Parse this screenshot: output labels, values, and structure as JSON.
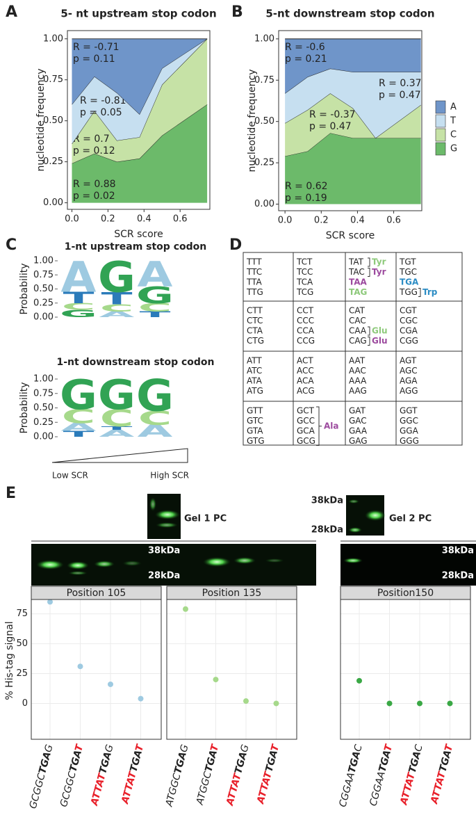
{
  "panel_labels": [
    "A",
    "B",
    "C",
    "D",
    "E"
  ],
  "chart_data": [
    {
      "type": "area",
      "title": "5- nt upstream stop codon",
      "xlabel": "SCR score",
      "ylabel": "nucleotide frequency",
      "x": [
        0,
        0.125,
        0.25,
        0.375,
        0.5,
        0.75
      ],
      "xlim": [
        -0.025,
        0.765
      ],
      "xticks": [
        {
          "value": 0,
          "label": "0.0"
        },
        0.2,
        0.4,
        0.6
      ],
      "ylim": [
        -0.04,
        1.05
      ],
      "yticks": [
        {
          "value": 0,
          "label": "0.00"
        },
        0.25,
        {
          "value": 0.5,
          "label": "0.50"
        },
        0.75,
        {
          "value": 1,
          "label": "1.00"
        }
      ],
      "stacked": true,
      "series": [
        {
          "name": "G",
          "color": "#6cba6a",
          "values": [
            0.24,
            0.3,
            0.25,
            0.27,
            0.41,
            0.6
          ],
          "annotation": [
            "R = 0.88",
            "p = 0.02"
          ]
        },
        {
          "name": "C",
          "color": "#c6e2a6",
          "values": [
            0.12,
            0.26,
            0.13,
            0.13,
            0.31,
            0.4
          ],
          "annotation": [
            "R = 0.7",
            "p = 0.12"
          ]
        },
        {
          "name": "T",
          "color": "#c6dff0",
          "values": [
            0.24,
            0.21,
            0.29,
            0.14,
            0.1,
            0
          ],
          "annotation": [
            "R = -0.81",
            "p = 0.05"
          ]
        },
        {
          "name": "A",
          "color": "#6f95c9",
          "values": [
            0.4,
            0.23,
            0.33,
            0.46,
            0.18,
            0
          ],
          "annotation": [
            "R = -0.71",
            "p = 0.11"
          ]
        }
      ]
    },
    {
      "type": "area",
      "title": "5-nt downstream stop codon",
      "xlabel": "SCR score",
      "ylabel": "nucleotide frequency",
      "x": [
        0,
        0.125,
        0.25,
        0.375,
        0.5,
        0.75
      ],
      "xlim": [
        -0.035,
        0.755
      ],
      "xticks": [
        {
          "value": 0,
          "label": "0.0"
        },
        0.2,
        0.4,
        0.6
      ],
      "ylim": [
        -0.04,
        1.05
      ],
      "yticks": [
        {
          "value": 0,
          "label": "0.00"
        },
        0.25,
        {
          "value": 0.5,
          "label": "0.50"
        },
        0.75,
        {
          "value": 1,
          "label": "1.00"
        }
      ],
      "stacked": true,
      "legend": "right",
      "series": [
        {
          "name": "G",
          "color": "#6cba6a",
          "values": [
            0.29,
            0.32,
            0.43,
            0.4,
            0.4,
            0.4
          ],
          "annotation": [
            "R = 0.62",
            "p = 0.19"
          ]
        },
        {
          "name": "C",
          "color": "#c6e2a6",
          "values": [
            0.2,
            0.25,
            0.24,
            0.18,
            0,
            0.2
          ],
          "annotation": [
            "R = -0.37",
            "p = 0.47"
          ]
        },
        {
          "name": "T",
          "color": "#c6dff0",
          "values": [
            0.18,
            0.2,
            0.15,
            0.22,
            0.4,
            0.2
          ],
          "annotation": [
            "R = 0.37",
            "p = 0.47"
          ]
        },
        {
          "name": "A",
          "color": "#6f95c9",
          "values": [
            0.33,
            0.23,
            0.18,
            0.2,
            0.2,
            0.2
          ],
          "annotation": [
            "R = -0.6",
            "p = 0.21"
          ]
        }
      ]
    },
    {
      "type": "logo",
      "title": "1-nt upstream stop codon",
      "ylabel": "Probability",
      "ylim": [
        0,
        1
      ],
      "yticks": [
        {
          "value": 0,
          "label": "0.00"
        },
        0.25,
        {
          "value": 0.5,
          "label": "0.50"
        },
        0.75,
        {
          "value": 1,
          "label": "1.00"
        }
      ],
      "positions": [
        [
          {
            "letter": "A",
            "color": "#9ecae1",
            "value": 0.55
          },
          {
            "letter": "T",
            "color": "#2b7bba",
            "value": 0.2
          },
          {
            "letter": "C",
            "color": "#a6d98b",
            "value": 0.12
          },
          {
            "letter": "G",
            "color": "#31a354",
            "value": 0.13
          }
        ],
        [
          {
            "letter": "G",
            "color": "#31a354",
            "value": 0.55
          },
          {
            "letter": "T",
            "color": "#2b7bba",
            "value": 0.22
          },
          {
            "letter": "C",
            "color": "#a6d98b",
            "value": 0.13
          },
          {
            "letter": "A",
            "color": "#9ecae1",
            "value": 0.1
          }
        ],
        [
          {
            "letter": "A",
            "color": "#9ecae1",
            "value": 0.45
          },
          {
            "letter": "G",
            "color": "#31a354",
            "value": 0.3
          },
          {
            "letter": "C",
            "color": "#a6d98b",
            "value": 0.15
          },
          {
            "letter": "T",
            "color": "#2b7bba",
            "value": 0.1
          }
        ]
      ]
    },
    {
      "type": "logo",
      "title": "1-nt downstream stop codon",
      "ylabel": "Probability",
      "ylim": [
        0,
        1
      ],
      "yticks": [
        {
          "value": 0,
          "label": "0.00"
        },
        0.25,
        {
          "value": 0.5,
          "label": "0.50"
        },
        0.75,
        {
          "value": 1,
          "label": "1.00"
        }
      ],
      "positions": [
        [
          {
            "letter": "G",
            "color": "#31a354",
            "value": 0.52
          },
          {
            "letter": "C",
            "color": "#a6d98b",
            "value": 0.24
          },
          {
            "letter": "A",
            "color": "#9ecae1",
            "value": 0.14
          },
          {
            "letter": "T",
            "color": "#2b7bba",
            "value": 0.1
          }
        ],
        [
          {
            "letter": "G",
            "color": "#31a354",
            "value": 0.52
          },
          {
            "letter": "C",
            "color": "#a6d98b",
            "value": 0.3
          },
          {
            "letter": "T",
            "color": "#2b7bba",
            "value": 0.06
          },
          {
            "letter": "A",
            "color": "#9ecae1",
            "value": 0.12
          }
        ],
        [
          {
            "letter": "G",
            "color": "#31a354",
            "value": 0.55
          },
          {
            "letter": "C",
            "color": "#a6d98b",
            "value": 0.24
          },
          {
            "letter": "A",
            "color": "#9ecae1",
            "value": 0.21
          }
        ]
      ]
    },
    {
      "type": "dot",
      "title": "Position 105",
      "ylabel": "% His-tag signal",
      "color": "#9ecae1",
      "ylim": [
        -30,
        87
      ],
      "yticks": [
        0,
        25,
        50,
        75
      ],
      "categories": [
        [
          {
            "text": "GCGGC"
          },
          {
            "text": "TGA",
            "bold": true
          },
          {
            "text": "G"
          }
        ],
        [
          {
            "text": "GCGGC"
          },
          {
            "text": "TGA",
            "bold": true
          },
          {
            "text": "T",
            "bold": true,
            "color": "#e8202a"
          }
        ],
        [
          {
            "text": "ATTAT",
            "bold": true,
            "color": "#e8202a"
          },
          {
            "text": "TGA",
            "bold": true
          },
          {
            "text": "G"
          }
        ],
        [
          {
            "text": "ATTAT",
            "bold": true,
            "color": "#e8202a"
          },
          {
            "text": "TGA",
            "bold": true
          },
          {
            "text": "T",
            "bold": true,
            "color": "#e8202a"
          }
        ]
      ],
      "values": [
        85,
        31,
        16,
        4
      ]
    },
    {
      "type": "dot",
      "title": "Position 135",
      "color": "#a6d98b",
      "ylim": [
        -30,
        87
      ],
      "yticks": [
        0,
        25,
        50,
        75
      ],
      "categories": [
        [
          {
            "text": "ATGGC"
          },
          {
            "text": "TGA",
            "bold": true
          },
          {
            "text": "G"
          }
        ],
        [
          {
            "text": "ATGGC"
          },
          {
            "text": "TGA",
            "bold": true
          },
          {
            "text": "T",
            "bold": true,
            "color": "#e8202a"
          }
        ],
        [
          {
            "text": "ATTAT",
            "bold": true,
            "color": "#e8202a"
          },
          {
            "text": "TGA",
            "bold": true
          },
          {
            "text": "G"
          }
        ],
        [
          {
            "text": "ATTAT",
            "bold": true,
            "color": "#e8202a"
          },
          {
            "text": "TGA",
            "bold": true
          },
          {
            "text": "T",
            "bold": true,
            "color": "#e8202a"
          }
        ]
      ],
      "values": [
        79,
        20,
        2,
        0
      ]
    },
    {
      "type": "dot",
      "title": "Position150",
      "color": "#3aa845",
      "ylim": [
        -30,
        87
      ],
      "yticks": [
        0,
        25,
        50,
        75
      ],
      "categories": [
        [
          {
            "text": "CGGAA"
          },
          {
            "text": "TGA",
            "bold": true
          },
          {
            "text": "C"
          }
        ],
        [
          {
            "text": "CGGAA"
          },
          {
            "text": "TGA",
            "bold": true
          },
          {
            "text": "T",
            "bold": true,
            "color": "#e8202a"
          }
        ],
        [
          {
            "text": "ATTAT",
            "bold": true,
            "color": "#e8202a"
          },
          {
            "text": "TGA",
            "bold": true
          },
          {
            "text": "C"
          }
        ],
        [
          {
            "text": "ATTAT",
            "bold": true,
            "color": "#e8202a"
          },
          {
            "text": "TGA",
            "bold": true
          },
          {
            "text": "T",
            "bold": true,
            "color": "#e8202a"
          }
        ]
      ],
      "values": [
        19,
        0,
        0,
        0
      ]
    }
  ],
  "scr_gradient": {
    "low": "Low SCR",
    "high": "High SCR"
  },
  "codon_table": {
    "rows": [
      [
        {
          "codons": [
            "TTT",
            "TTC",
            "TTA",
            "TTG"
          ]
        },
        {
          "codons": [
            "TCT",
            "TCC",
            "TCA",
            "TCG"
          ]
        },
        {
          "codons": [
            {
              "text": "TAT",
              "label": {
                "text": "Tyr",
                "color": "#8dc97a"
              }
            },
            {
              "text": "TAC",
              "label": {
                "text": "Tyr",
                "color": "#9c4a9e"
              }
            },
            {
              "text": "TAA",
              "bold": true,
              "color": "#9c4a9e"
            },
            {
              "text": "TAG",
              "bold": true,
              "color": "#8dc97a"
            }
          ]
        },
        {
          "codons": [
            "TGT",
            "TGC",
            {
              "text": "TGA",
              "bold": true,
              "color": "#2b8cc4"
            },
            {
              "text": "TGG",
              "label": {
                "text": "Trp",
                "color": "#2b8cc4"
              }
            }
          ]
        }
      ],
      [
        {
          "codons": [
            "CTT",
            "CTC",
            "CTA",
            "CTG"
          ]
        },
        {
          "codons": [
            "CCT",
            "CCC",
            "CCA",
            "CCG"
          ]
        },
        {
          "codons": [
            "CAT",
            "CAC",
            {
              "text": "CAA",
              "label": {
                "text": "Glu",
                "color": "#8dc97a"
              }
            },
            {
              "text": "CAG",
              "label": {
                "text": "Glu",
                "color": "#9c4a9e"
              }
            }
          ]
        },
        {
          "codons": [
            "CGT",
            "CGC",
            "CGA",
            "CGG"
          ]
        }
      ],
      [
        {
          "codons": [
            "ATT",
            "ATC",
            "ATA",
            "ATG"
          ]
        },
        {
          "codons": [
            "ACT",
            "ACC",
            "ACA",
            "ACG"
          ]
        },
        {
          "codons": [
            "AAT",
            "AAC",
            "AAA",
            "AAG"
          ]
        },
        {
          "codons": [
            "AGT",
            "AGC",
            "AGA",
            "AGG"
          ]
        }
      ],
      [
        {
          "codons": [
            "GTT",
            "GTC",
            "GTA",
            "GTG"
          ]
        },
        {
          "codons": [
            "GCT",
            "GCC",
            "GCA",
            "GCG"
          ],
          "label": {
            "text": "Ala",
            "color": "#9c4a9e"
          }
        },
        {
          "codons": [
            "GAT",
            "GAC",
            "GAA",
            "GAG"
          ]
        },
        {
          "codons": [
            "GGT",
            "GGC",
            "GGA",
            "GGG"
          ]
        }
      ]
    ]
  },
  "gels": {
    "gel1_label": "Gel 1 PC",
    "gel1_markers": [
      "38kDa",
      "28kDa"
    ],
    "gel2_label": "Gel 2 PC",
    "gel2_pc_markers": [
      "38kDa",
      "28kDa"
    ],
    "gel2_markers": [
      "38kDa",
      "28kDa"
    ]
  }
}
